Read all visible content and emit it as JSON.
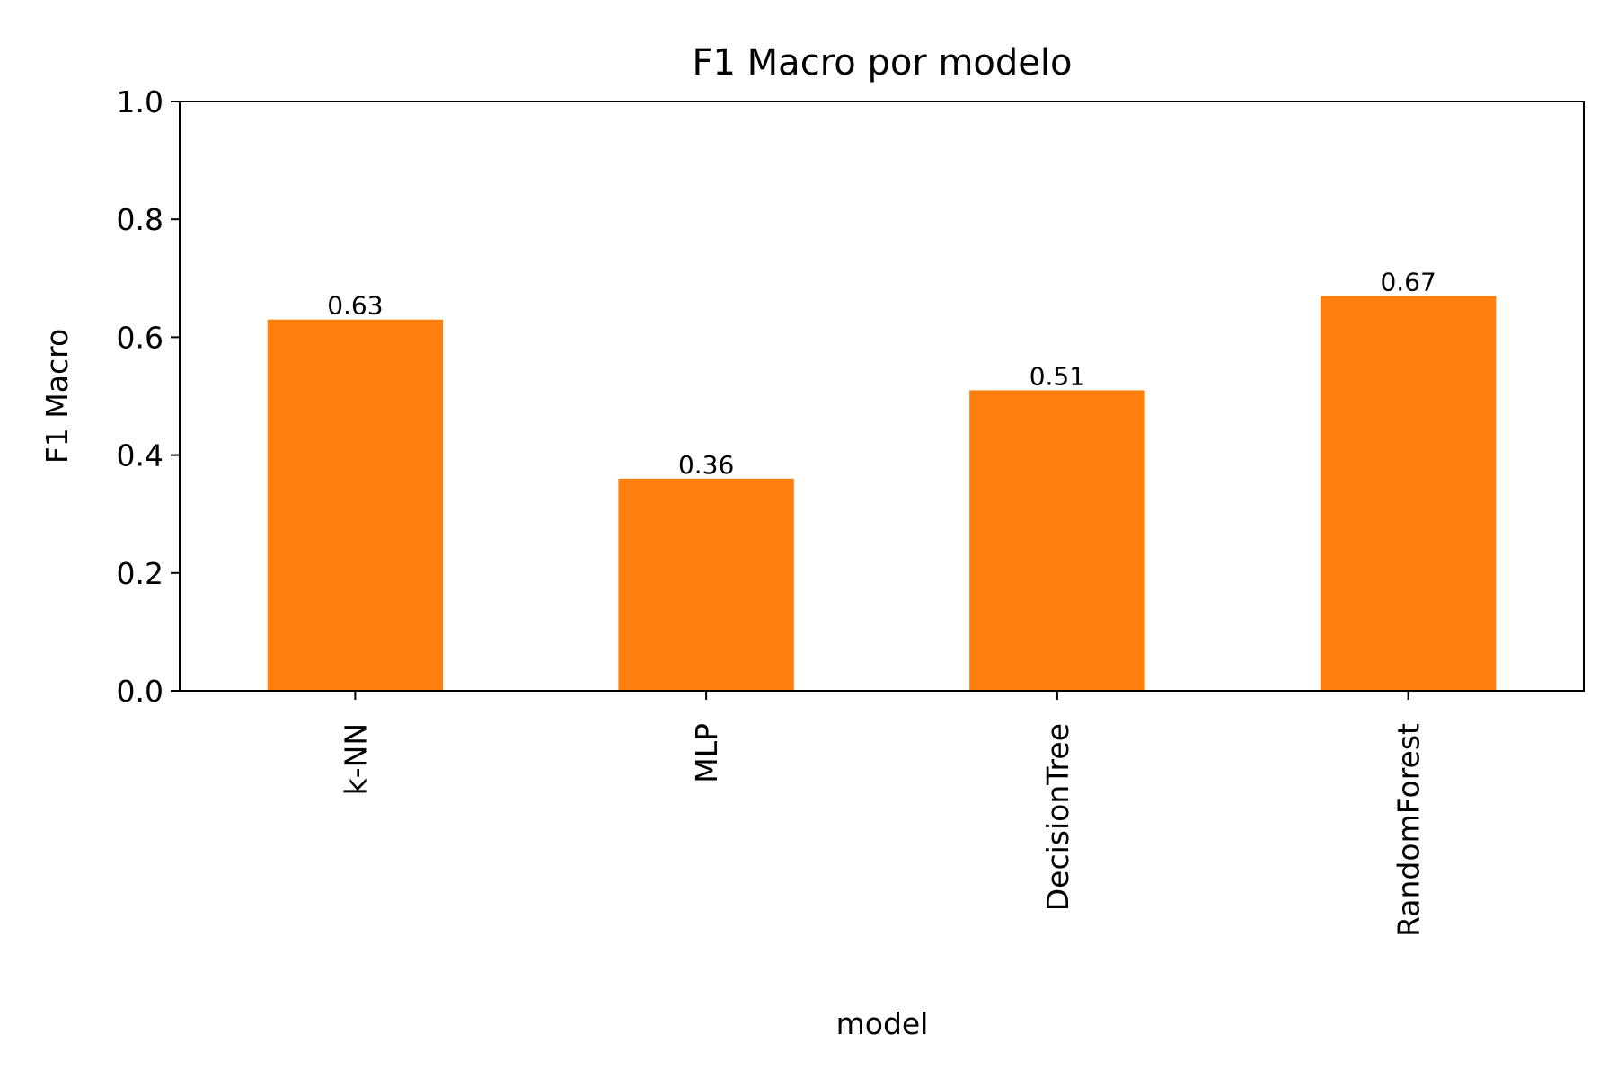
{
  "chart_data": {
    "type": "bar",
    "title": "F1 Macro por modelo",
    "xlabel": "model",
    "ylabel": "F1 Macro",
    "categories": [
      "k-NN",
      "MLP",
      "DecisionTree",
      "RandomForest"
    ],
    "values": [
      0.63,
      0.36,
      0.51,
      0.67
    ],
    "data_labels": [
      "0.63",
      "0.36",
      "0.51",
      "0.67"
    ],
    "ylim": [
      0,
      1.0
    ],
    "yticks": [
      0.0,
      0.2,
      0.4,
      0.6,
      0.8,
      1.0
    ],
    "ytick_labels": [
      "0.0",
      "0.2",
      "0.4",
      "0.6",
      "0.8",
      "1.0"
    ],
    "grid": false,
    "legend": "none",
    "bar_color": "#ff7f0e",
    "xtick_rotation": "vertical"
  }
}
